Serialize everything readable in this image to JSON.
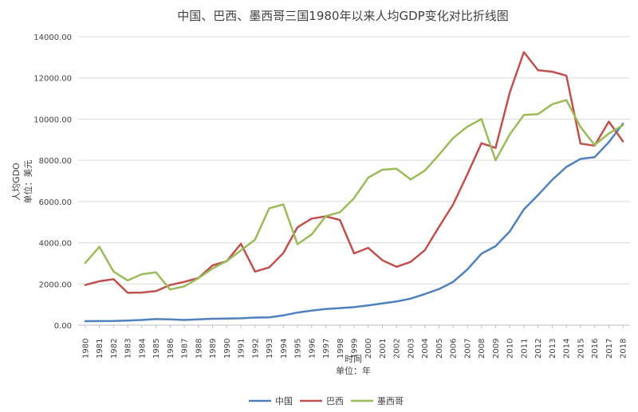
{
  "chart_data": {
    "type": "line",
    "title": "中国、巴西、墨西哥三国1980年以来人均GDP变化对比折线图",
    "xlabel_line1": "时间",
    "xlabel_line2": "单位：年",
    "ylabel_line1": "人均GDO",
    "ylabel_line2": "单位：美元",
    "ylim": [
      0,
      14000
    ],
    "yticks": [
      "0.00",
      "2000.00",
      "4000.00",
      "6000.00",
      "8000.00",
      "10000.00",
      "12000.00",
      "14000.00"
    ],
    "ytick_values": [
      0,
      2000,
      4000,
      6000,
      8000,
      10000,
      12000,
      14000
    ],
    "grid": true,
    "legend_position": "bottom",
    "categories": [
      "1980",
      "1981",
      "1982",
      "1983",
      "1984",
      "1985",
      "1986",
      "1987",
      "1988",
      "1989",
      "1990",
      "1991",
      "1992",
      "1993",
      "1994",
      "1995",
      "1996",
      "1997",
      "1998",
      "1999",
      "2000",
      "2001",
      "2002",
      "2003",
      "2004",
      "2005",
      "2006",
      "2007",
      "2008",
      "2009",
      "2010",
      "2011",
      "2012",
      "2013",
      "2014",
      "2015",
      "2016",
      "2017",
      "2018"
    ],
    "series": [
      {
        "name": "中国",
        "color": "#4e81bd",
        "values": [
          195,
          197,
          203,
          225,
          251,
          294,
          282,
          251,
          284,
          311,
          318,
          333,
          366,
          377,
          473,
          610,
          709,
          782,
          829,
          873,
          959,
          1053,
          1149,
          1289,
          1509,
          1753,
          2099,
          2694,
          3468,
          3832,
          4550,
          5618,
          6316,
          7050,
          7678,
          8066,
          8147,
          8879,
          9771
        ]
      },
      {
        "name": "巴西",
        "color": "#c0504d",
        "values": [
          1950,
          2130,
          2230,
          1570,
          1580,
          1650,
          1950,
          2100,
          2290,
          2900,
          3100,
          3950,
          2600,
          2800,
          3500,
          4750,
          5170,
          5280,
          5100,
          3480,
          3750,
          3150,
          2830,
          3070,
          3640,
          4770,
          5860,
          7310,
          8830,
          8600,
          11290,
          13250,
          12370,
          12300,
          12110,
          8810,
          8710,
          9880,
          8920
        ]
      },
      {
        "name": "墨西哥",
        "color": "#9bbb59",
        "values": [
          3020,
          3800,
          2600,
          2170,
          2470,
          2560,
          1730,
          1880,
          2280,
          2750,
          3110,
          3630,
          4150,
          5670,
          5860,
          3930,
          4400,
          5290,
          5480,
          6160,
          7160,
          7540,
          7590,
          7070,
          7500,
          8270,
          9080,
          9630,
          10000,
          8000,
          9260,
          10200,
          10240,
          10720,
          10920,
          9620,
          8740,
          9300,
          9700
        ]
      }
    ]
  }
}
